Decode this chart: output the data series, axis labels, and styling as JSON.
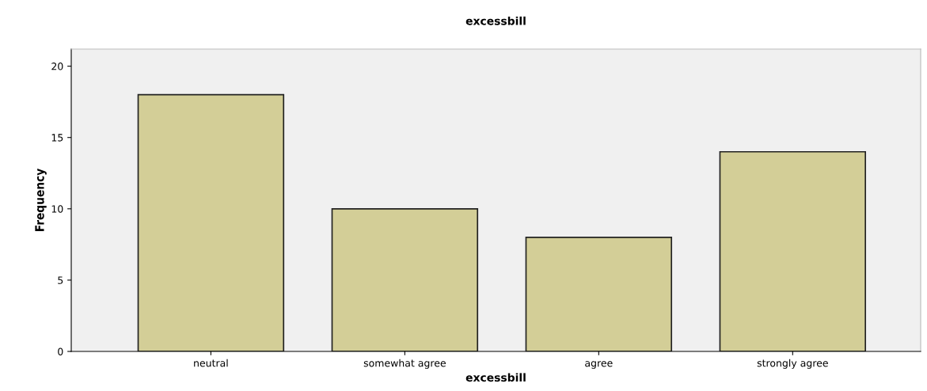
{
  "chart_data": {
    "type": "bar",
    "title": "excessbill",
    "xlabel": "excessbill",
    "ylabel": "Frequency",
    "categories": [
      "neutral",
      "somewhat agree",
      "agree",
      "strongly agree"
    ],
    "values": [
      18,
      10,
      8,
      14
    ],
    "color": "#d3ce97",
    "ylim": [
      0,
      21.2
    ],
    "yticks": [
      0,
      5,
      10,
      15,
      20
    ],
    "grid": false,
    "legend": false
  }
}
